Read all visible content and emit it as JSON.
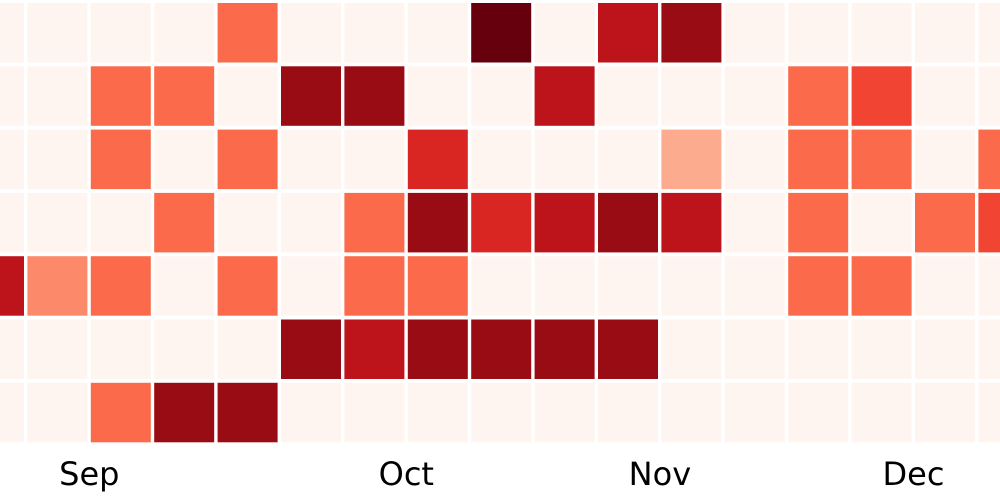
{
  "chart_data": {
    "type": "heatmap",
    "categories": [
      null,
      null,
      "Sep",
      null,
      null,
      null,
      null,
      "Oct",
      null,
      null,
      null,
      "Nov",
      null,
      null,
      null,
      "Dec",
      null
    ],
    "values": [
      [
        0,
        0,
        0,
        0,
        5,
        0,
        0,
        0,
        10,
        0,
        8,
        9,
        0,
        0,
        0,
        0,
        0
      ],
      [
        0,
        0,
        5,
        5,
        0,
        9,
        9,
        0,
        0,
        8,
        0,
        0,
        0,
        5,
        6,
        0,
        0
      ],
      [
        0,
        0,
        5,
        0,
        5,
        0,
        0,
        7,
        0,
        0,
        0,
        3,
        0,
        5,
        5,
        0,
        5
      ],
      [
        0,
        0,
        0,
        5,
        0,
        0,
        5,
        9,
        7,
        8,
        9,
        8,
        0,
        5,
        0,
        5,
        6
      ],
      [
        8,
        4,
        5,
        0,
        5,
        0,
        5,
        5,
        0,
        0,
        0,
        0,
        0,
        5,
        5,
        0,
        0
      ],
      [
        0,
        0,
        0,
        0,
        0,
        9,
        8,
        9,
        9,
        9,
        9,
        0,
        0,
        0,
        0,
        0,
        0
      ],
      [
        0,
        0,
        5,
        9,
        9,
        0,
        0,
        0,
        0,
        0,
        0,
        0,
        0,
        0,
        0,
        0,
        0
      ]
    ],
    "zlim": [
      0,
      10
    ],
    "colorscale": [
      "#fff5f0",
      "#fee0d2",
      "#fcbba1",
      "#fc9272",
      "#fb6a4a",
      "#ef3b2c",
      "#cb181d",
      "#a50f15",
      "#67000d"
    ]
  }
}
